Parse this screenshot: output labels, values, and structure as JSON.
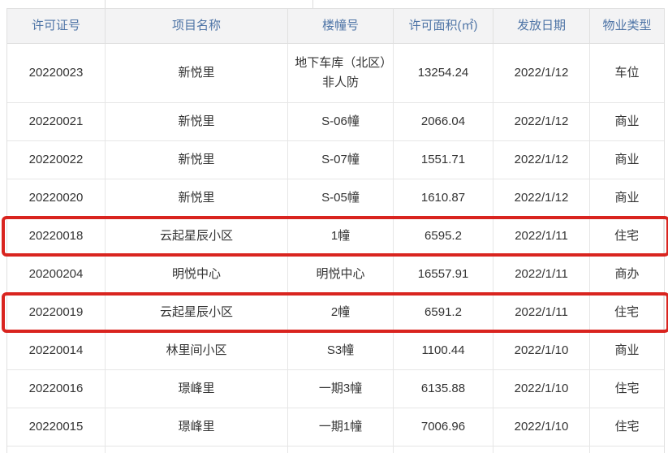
{
  "table": {
    "columns": [
      {
        "label": "许可证号"
      },
      {
        "label": "项目名称"
      },
      {
        "label": "楼幢号"
      },
      {
        "label": "许可面积(㎡)"
      },
      {
        "label": "发放日期"
      },
      {
        "label": "物业类型"
      }
    ],
    "rows": [
      {
        "cells": [
          "20220023",
          "新悦里",
          "地下车库（北区）非人防",
          "13254.24",
          "2022/1/12",
          "车位"
        ],
        "highlighted": false,
        "tall": true
      },
      {
        "cells": [
          "20220021",
          "新悦里",
          "S-06幢",
          "2066.04",
          "2022/1/12",
          "商业"
        ],
        "highlighted": false,
        "tall": false
      },
      {
        "cells": [
          "20220022",
          "新悦里",
          "S-07幢",
          "1551.71",
          "2022/1/12",
          "商业"
        ],
        "highlighted": false,
        "tall": false
      },
      {
        "cells": [
          "20220020",
          "新悦里",
          "S-05幢",
          "1610.87",
          "2022/1/12",
          "商业"
        ],
        "highlighted": false,
        "tall": false
      },
      {
        "cells": [
          "20220018",
          "云起星辰小区",
          "1幢",
          "6595.2",
          "2022/1/11",
          "住宅"
        ],
        "highlighted": true,
        "tall": false
      },
      {
        "cells": [
          "20200204",
          "明悦中心",
          "明悦中心",
          "16557.91",
          "2022/1/11",
          "商办"
        ],
        "highlighted": false,
        "tall": false
      },
      {
        "cells": [
          "20220019",
          "云起星辰小区",
          "2幢",
          "6591.2",
          "2022/1/11",
          "住宅"
        ],
        "highlighted": true,
        "tall": false
      },
      {
        "cells": [
          "20220014",
          "林里间小区",
          "S3幢",
          "1100.44",
          "2022/1/10",
          "商业"
        ],
        "highlighted": false,
        "tall": false
      },
      {
        "cells": [
          "20220016",
          "璟峰里",
          "一期3幢",
          "6135.88",
          "2022/1/10",
          "住宅"
        ],
        "highlighted": false,
        "tall": false
      },
      {
        "cells": [
          "20220015",
          "璟峰里",
          "一期1幢",
          "7006.96",
          "2022/1/10",
          "住宅"
        ],
        "highlighted": false,
        "tall": false
      }
    ],
    "colors": {
      "header_text": "#4e74a6",
      "header_bg": "#f3f3f4",
      "body_text": "#333333",
      "grid_line": "#e6e6e6",
      "highlight_red": "#d9241f"
    }
  }
}
